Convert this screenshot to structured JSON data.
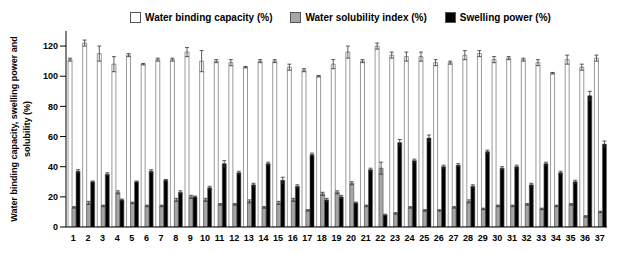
{
  "chart_data": {
    "type": "bar",
    "y_label": "Water binding capacity, swelling power and solubility (%)",
    "categories": [
      "1",
      "2",
      "3",
      "4",
      "5",
      "6",
      "7",
      "8",
      "9",
      "10",
      "11",
      "12",
      "13",
      "14",
      "15",
      "16",
      "17",
      "18",
      "19",
      "20",
      "21",
      "22",
      "23",
      "24",
      "25",
      "26",
      "27",
      "28",
      "29",
      "30",
      "31",
      "32",
      "33",
      "34",
      "35",
      "36",
      "37"
    ],
    "series": [
      {
        "name": "Water binding capacity (%)",
        "color": "#ffffff",
        "values": [
          111,
          122,
          115,
          108,
          114,
          108,
          111,
          111,
          116,
          110,
          110,
          109,
          106,
          110,
          110,
          106,
          104,
          100,
          108,
          116,
          110,
          120,
          114,
          113,
          113,
          109,
          109,
          114,
          115,
          111,
          112,
          111,
          109,
          102,
          111,
          106,
          112
        ],
        "errors": [
          1,
          2,
          5,
          5,
          1,
          0.5,
          1,
          1,
          3,
          7,
          1,
          2,
          0.5,
          1,
          1,
          2,
          1,
          0.5,
          3,
          4,
          1,
          2,
          2,
          3,
          3,
          2,
          1,
          3,
          2,
          2,
          1,
          1,
          2,
          0.5,
          3,
          2,
          2
        ]
      },
      {
        "name": "Water solubility index (%)",
        "color": "#a6a6a6",
        "values": [
          13,
          16,
          14,
          23,
          16,
          14,
          14,
          18,
          20,
          18,
          15,
          15,
          17,
          13,
          16,
          18,
          11,
          22,
          23,
          29,
          14,
          39,
          9,
          13,
          11,
          11,
          13,
          17,
          12,
          14,
          14,
          15,
          12,
          14,
          15,
          7,
          10
        ],
        "errors": [
          0.5,
          1,
          0.5,
          1,
          0.5,
          0.5,
          0.5,
          1,
          1,
          1,
          0.5,
          0.5,
          1,
          0.5,
          1,
          1,
          0.5,
          1,
          1,
          1,
          0.5,
          4,
          0.5,
          0.5,
          0.5,
          0.5,
          0.5,
          1,
          0.5,
          0.5,
          0.5,
          0.5,
          0.5,
          0.5,
          0.5,
          0.5,
          0.5
        ]
      },
      {
        "name": "Swelling power (%)",
        "color": "#000000",
        "values": [
          37,
          30,
          35,
          18,
          30,
          37,
          31,
          23,
          20,
          26,
          42,
          36,
          28,
          42,
          31,
          27,
          48,
          18,
          20,
          16,
          38,
          8,
          56,
          44,
          59,
          40,
          41,
          27,
          50,
          39,
          40,
          28,
          42,
          36,
          30,
          87,
          55
        ],
        "errors": [
          1,
          0.5,
          1,
          0.5,
          0.5,
          1,
          0.5,
          1,
          0.5,
          1,
          2,
          1,
          1,
          1,
          2,
          1,
          1,
          1,
          1,
          0.5,
          1,
          0.5,
          2,
          1,
          2,
          1,
          1,
          1,
          1,
          1,
          1,
          1,
          1,
          1,
          1,
          3,
          2
        ]
      }
    ],
    "ylim": [
      0,
      130
    ],
    "yticks": [
      0,
      20,
      40,
      60,
      80,
      100,
      120
    ],
    "legend": "top",
    "grid": false
  }
}
